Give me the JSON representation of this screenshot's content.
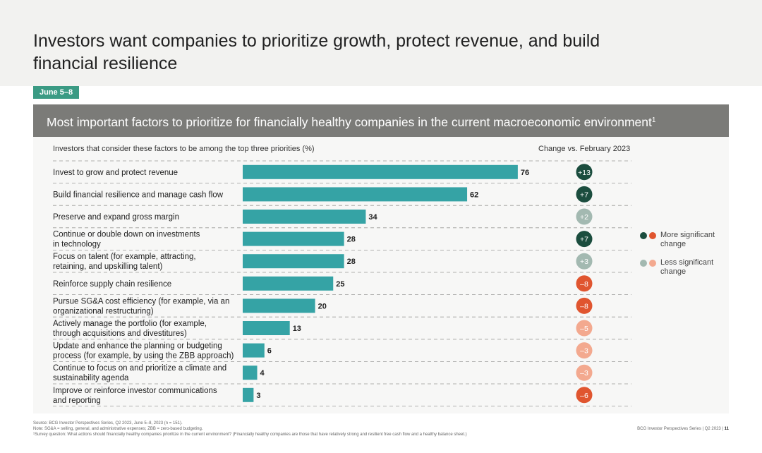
{
  "page": {
    "title": "Investors want companies to prioritize growth, protect revenue, and build financial resilience",
    "date_tag": "June 5–8",
    "banner_title": "Most important factors to prioritize for financially healthy companies in the current macroeconomic environment",
    "banner_sup": "1",
    "subhead": "Investors that consider these factors to be among the top three priorities (%)",
    "change_header": "Change vs. February 2023"
  },
  "legend": {
    "more_significant": "More significant change",
    "less_significant": "Less significant change"
  },
  "colors": {
    "bar": "#35a3a5",
    "positive_strong": "#1b4d3e",
    "positive_light": "#a3b9b1",
    "negative_strong": "#e0552f",
    "negative_light": "#f3a98f"
  },
  "chart_data": {
    "type": "bar",
    "orientation": "horizontal",
    "categories": [
      [
        "Invest to grow and protect revenue"
      ],
      [
        "Build financial resilience and manage cash flow"
      ],
      [
        "Preserve and expand gross margin"
      ],
      [
        "Continue or double down on investments",
        "in technology"
      ],
      [
        "Focus on talent (for example, attracting,",
        "retaining, and upskilling talent)"
      ],
      [
        "Reinforce supply chain resilience"
      ],
      [
        "Pursue SG&A cost efficiency (for example, via an",
        "organizational restructuring)"
      ],
      [
        "Actively manage the portfolio (for example,",
        "through acquisitions and divestitures)"
      ],
      [
        "Update and enhance the planning or budgeting",
        "process (for example, by using the ZBB approach)"
      ],
      [
        "Continue to focus on and prioritize a climate and",
        "sustainability agenda"
      ],
      [
        "Improve or reinforce investor communications",
        "and reporting"
      ]
    ],
    "values": [
      76,
      62,
      34,
      28,
      28,
      25,
      20,
      13,
      6,
      4,
      3
    ],
    "changes": [
      "+13",
      "+7",
      "+2",
      "+7",
      "+3",
      "–8",
      "–8",
      "–5",
      "–3",
      "–3",
      "–6"
    ],
    "change_significance": [
      "more",
      "more",
      "less",
      "more",
      "less",
      "more",
      "more",
      "less",
      "less",
      "less",
      "more"
    ],
    "xlim": [
      0,
      100
    ]
  },
  "footnotes": [
    "Source: BCG Investor Perspectives Series, Q2 2023, June 5–8, 2023 (n = 151).",
    "Note: SG&A = selling, general, and administrative expenses; ZBB = zero-based budgeting.",
    "¹Survey question: What actions should financially healthy companies prioritize in the current environment? (Financially healthy companies are those that have relatively strong and resilient free cash flow and a healthy balance sheet.)"
  ],
  "footer": {
    "series": "BCG Investor Perspectives Series | Q2 2023 |",
    "page_number": "11"
  }
}
